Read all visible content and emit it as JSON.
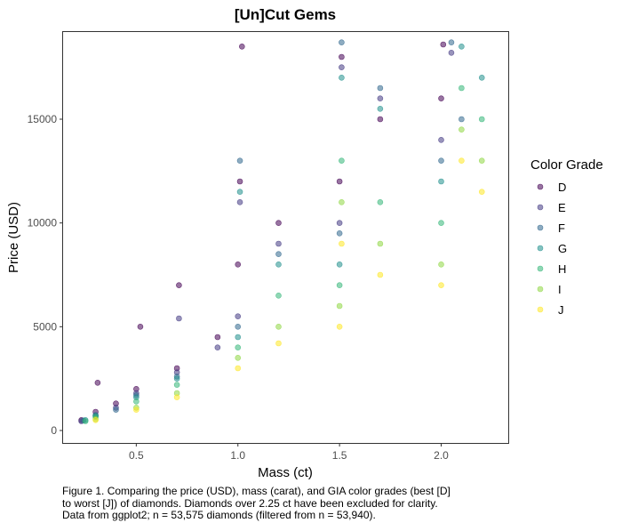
{
  "chart_data": {
    "type": "scatter",
    "title": "[Un]Cut Gems",
    "xlabel": "Mass (ct)",
    "ylabel": "Price (USD)",
    "xlim": [
      0.14,
      2.33
    ],
    "ylim": [
      -600,
      19200
    ],
    "xticks": [
      0.5,
      1.0,
      1.5,
      2.0
    ],
    "xtick_labels": [
      "0.5",
      "1.0",
      "1.5",
      "2.0"
    ],
    "yticks": [
      0,
      5000,
      10000,
      15000
    ],
    "ytick_labels": [
      "0",
      "5000",
      "10000",
      "15000"
    ],
    "grid": false,
    "legend_position": "right",
    "legend": {
      "title": "Color Grade",
      "entries": [
        "D",
        "E",
        "F",
        "G",
        "H",
        "I",
        "J"
      ]
    },
    "colors": [
      "#440154",
      "#443a83",
      "#31688e",
      "#21908d",
      "#35b779",
      "#8fd744",
      "#fde725"
    ],
    "point_opacity": 0.55,
    "series": [
      {
        "name": "D",
        "x": [
          0.23,
          0.3,
          0.31,
          0.4,
          0.5,
          0.52,
          0.7,
          0.71,
          0.9,
          1.0,
          1.01,
          1.02,
          1.2,
          1.5,
          1.51,
          1.7,
          2.0,
          2.01
        ],
        "y": [
          500,
          900,
          2300,
          1300,
          2000,
          5000,
          3000,
          7000,
          4500,
          8000,
          12000,
          18500,
          10000,
          12000,
          18000,
          15000,
          16000,
          18600
        ]
      },
      {
        "name": "E",
        "x": [
          0.23,
          0.3,
          0.4,
          0.5,
          0.7,
          0.71,
          0.9,
          1.0,
          1.01,
          1.2,
          1.5,
          1.51,
          1.7,
          2.0,
          2.05
        ],
        "y": [
          450,
          700,
          1100,
          1800,
          2800,
          5400,
          4000,
          5500,
          11000,
          9000,
          10000,
          17500,
          16000,
          14000,
          18200
        ]
      },
      {
        "name": "F",
        "x": [
          0.24,
          0.3,
          0.4,
          0.5,
          0.7,
          1.0,
          1.01,
          1.2,
          1.5,
          1.51,
          1.7,
          2.0,
          2.05,
          2.1
        ],
        "y": [
          480,
          750,
          1000,
          1700,
          2600,
          5000,
          13000,
          8500,
          9500,
          18700,
          16500,
          13000,
          18700,
          15000
        ]
      },
      {
        "name": "G",
        "x": [
          0.25,
          0.3,
          0.5,
          0.7,
          1.0,
          1.01,
          1.2,
          1.5,
          1.51,
          1.7,
          2.0,
          2.1,
          2.2
        ],
        "y": [
          500,
          700,
          1600,
          2500,
          4500,
          11500,
          8000,
          8000,
          17000,
          15500,
          12000,
          18500,
          17000
        ]
      },
      {
        "name": "H",
        "x": [
          0.25,
          0.3,
          0.5,
          0.7,
          1.0,
          1.2,
          1.5,
          1.51,
          1.7,
          2.0,
          2.1,
          2.2
        ],
        "y": [
          450,
          650,
          1400,
          2200,
          4000,
          6500,
          7000,
          13000,
          11000,
          10000,
          16500,
          15000
        ]
      },
      {
        "name": "I",
        "x": [
          0.3,
          0.5,
          0.7,
          1.0,
          1.2,
          1.5,
          1.51,
          1.7,
          2.0,
          2.1,
          2.2
        ],
        "y": [
          550,
          1100,
          1800,
          3500,
          5000,
          6000,
          11000,
          9000,
          8000,
          14500,
          13000
        ]
      },
      {
        "name": "J",
        "x": [
          0.3,
          0.5,
          0.7,
          1.0,
          1.2,
          1.5,
          1.51,
          1.7,
          2.0,
          2.1,
          2.2
        ],
        "y": [
          500,
          1000,
          1600,
          3000,
          4200,
          5000,
          9000,
          7500,
          7000,
          13000,
          11500
        ]
      }
    ]
  },
  "caption": {
    "lines": [
      "Figure 1. Comparing the price (USD), mass (carat), and GIA color grades (best [D]",
      "to worst [J]) of diamonds. Diamonds over 2.25 ct have been excluded for clarity.",
      "Data from ggplot2; n = 53,575 diamonds (filtered from n = 53,940)."
    ]
  }
}
